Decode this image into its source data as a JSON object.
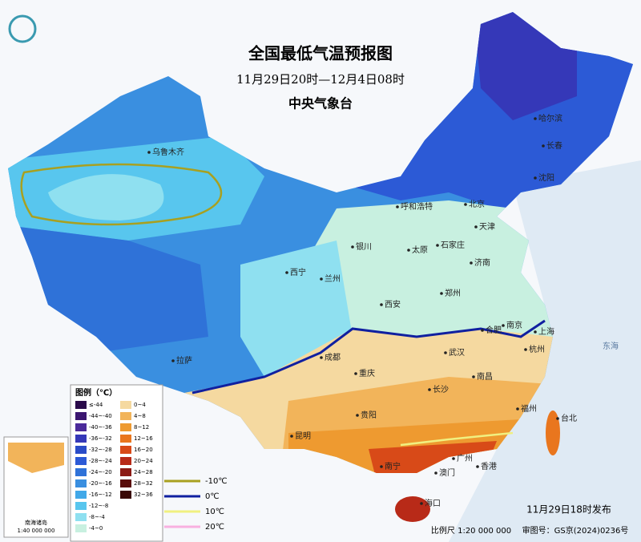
{
  "header": {
    "title": "全国最低气温预报图",
    "subtitle": "11月29日20时—12月4日08时",
    "issuer": "中央气象台"
  },
  "cities": [
    "乌鲁木齐",
    "哈尔滨",
    "长春",
    "沈阳",
    "北京",
    "天津",
    "呼和浩特",
    "石家庄",
    "银川",
    "太原",
    "济南",
    "西宁",
    "兰州",
    "郑州",
    "西安",
    "合肥",
    "南京",
    "上海",
    "杭州",
    "拉萨",
    "成都",
    "重庆",
    "武汉",
    "南昌",
    "长沙",
    "贵阳",
    "福州",
    "台北",
    "昆明",
    "南宁",
    "广州",
    "澳门",
    "香港",
    "海口"
  ],
  "seas": [
    "东海"
  ],
  "legend": {
    "title": "图例（℃）",
    "items": [
      {
        "label": "≤-44",
        "color": "#2a0a4a"
      },
      {
        "label": "-44~-40",
        "color": "#3b1670"
      },
      {
        "label": "-40~-36",
        "color": "#4b2a9a"
      },
      {
        "label": "-36~-32",
        "color": "#3538b8"
      },
      {
        "label": "-32~-28",
        "color": "#2a4cc8"
      },
      {
        "label": "-28~-24",
        "color": "#2c5ad6"
      },
      {
        "label": "-24~-20",
        "color": "#2f72d8"
      },
      {
        "label": "-20~-16",
        "color": "#3a8fe0"
      },
      {
        "label": "-16~-12",
        "color": "#41a8e8"
      },
      {
        "label": "-12~-8",
        "color": "#58c6ee"
      },
      {
        "label": "-8~-4",
        "color": "#8fe0f0"
      },
      {
        "label": "-4~0",
        "color": "#c8f0e0"
      },
      {
        "label": "0~4",
        "color": "#f5d9a0"
      },
      {
        "label": "4~8",
        "color": "#f2b45a"
      },
      {
        "label": "8~12",
        "color": "#ee9a30"
      },
      {
        "label": "12~16",
        "color": "#e9761e"
      },
      {
        "label": "16~20",
        "color": "#d84a18"
      },
      {
        "label": "20~24",
        "color": "#b82a18"
      },
      {
        "label": "24~28",
        "color": "#8c1a14"
      },
      {
        "label": "28~32",
        "color": "#5a0e0c"
      },
      {
        "label": "32~36",
        "color": "#3a0806"
      }
    ]
  },
  "isolines": [
    {
      "label": "-10℃",
      "color": "#a8a020"
    },
    {
      "label": "0℃",
      "color": "#1020a0"
    },
    {
      "label": "10℃",
      "color": "#f0f080"
    },
    {
      "label": "20℃",
      "color": "#f8b0e0"
    }
  ],
  "inset": {
    "title": "南海诸岛",
    "scale": "1:40 000 000"
  },
  "footer": {
    "issued": "11月29日18时发布",
    "scale": "比例尺 1:20 000 000",
    "map_number": "审图号：GS京(2024)0236号"
  }
}
